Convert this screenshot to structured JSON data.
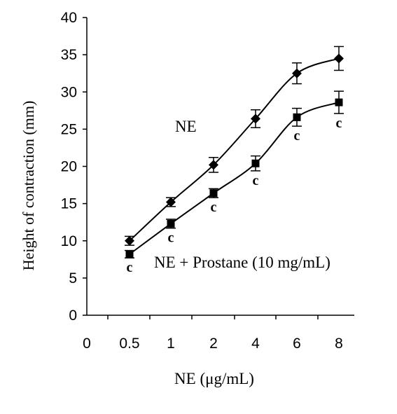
{
  "chart_data": {
    "type": "line",
    "title": "",
    "xlabel": "NE (μg/mL)",
    "ylabel": "Height of  contraction (mm)",
    "x_tick_labels": [
      "0",
      "0.5",
      "1",
      "2",
      "4",
      "6",
      "8"
    ],
    "categories": [
      "0.5",
      "1",
      "2",
      "4",
      "6",
      "8"
    ],
    "ylim": [
      0,
      40
    ],
    "y_ticks": [
      0,
      5,
      10,
      15,
      20,
      25,
      30,
      35,
      40
    ],
    "grid": false,
    "legend": "none",
    "series": [
      {
        "name": "NE",
        "marker": "diamond",
        "values": [
          10.0,
          15.2,
          20.2,
          26.4,
          32.5,
          34.5
        ],
        "errors": [
          0.6,
          0.6,
          1.0,
          1.2,
          1.4,
          1.6
        ]
      },
      {
        "name": "NE + Prostane  (10 mg/mL)",
        "marker": "square",
        "values": [
          8.2,
          12.3,
          16.4,
          20.4,
          26.6,
          28.6
        ],
        "errors": [
          0.5,
          0.6,
          0.6,
          1.0,
          1.2,
          1.5
        ],
        "significance": [
          "c",
          "c",
          "c",
          "c",
          "c",
          "c"
        ]
      }
    ],
    "colors": {
      "line": "#000000",
      "background": "#ffffff"
    }
  }
}
